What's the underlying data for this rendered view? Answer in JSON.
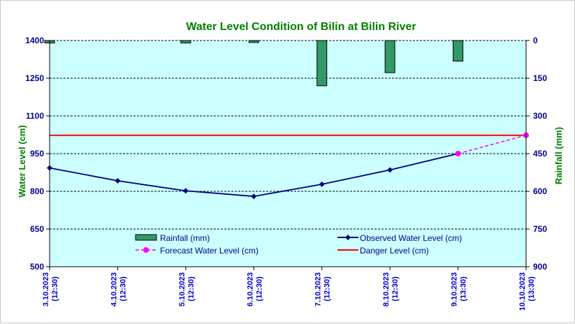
{
  "chart_data": {
    "type": "line",
    "title": "Water Level Condition of Bilin at Bilin River",
    "ylabel": "Water Level (cm)",
    "y2label": "Rainfall (mm)",
    "ylim": [
      500,
      1400
    ],
    "y2lim": [
      0,
      900
    ],
    "y2_inverted": true,
    "yticks": [
      "1400",
      "1250",
      "1100",
      "950",
      "800",
      "650",
      "500"
    ],
    "y2ticks": [
      "0",
      "150",
      "300",
      "450",
      "600",
      "750",
      "900"
    ],
    "categories": [
      [
        "3.10.2023",
        "(12:30)"
      ],
      [
        "4.10.2023",
        "(12:30)"
      ],
      [
        "5.10.2023",
        "(12:30)"
      ],
      [
        "6.10.2023",
        "(12:30)"
      ],
      [
        "7.10.2023",
        "(12:30)"
      ],
      [
        "8.10.2023",
        "(12:30)"
      ],
      [
        "9.10.2023",
        "(13:30)"
      ],
      [
        "10.10.2023",
        "(13:30)"
      ]
    ],
    "series": [
      {
        "name": "Rainfall (mm)",
        "kind": "bar",
        "axis": "right",
        "color": "#339966",
        "values": [
          10,
          null,
          10,
          8,
          180,
          128,
          82,
          null
        ]
      },
      {
        "name": "Observed Water Level (cm)",
        "kind": "line",
        "axis": "left",
        "color": "#000080",
        "values": [
          893,
          842,
          802,
          780,
          828,
          885,
          950,
          null
        ]
      },
      {
        "name": "Forecast Water Level (cm)",
        "kind": "dashed-line",
        "axis": "left",
        "color": "#ff00ff",
        "values": [
          null,
          null,
          null,
          null,
          null,
          null,
          950,
          1023
        ]
      },
      {
        "name": "Danger Level (cm)",
        "kind": "hline",
        "axis": "left",
        "color": "#ff0000",
        "value": 1023
      }
    ],
    "grid": "horizontal-dashed",
    "plot_background": "#ccffff",
    "legend_position": "bottom-inside"
  }
}
